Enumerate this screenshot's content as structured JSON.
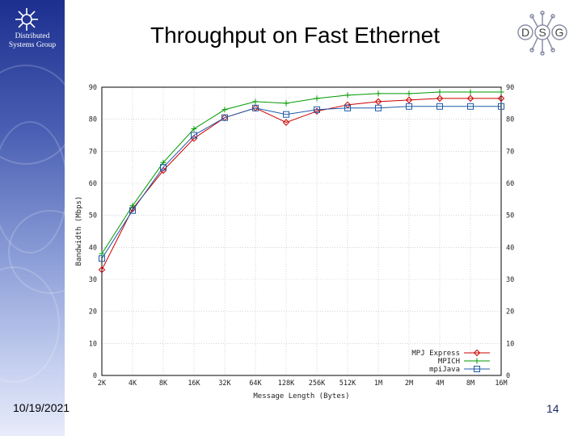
{
  "slide": {
    "title": "Throughput on Fast Ethernet",
    "group_name": "Distributed Systems Group",
    "logo_letters": [
      "D",
      "S",
      "G"
    ],
    "date": "10/19/2021",
    "slide_number": "14"
  },
  "colors": {
    "sidebar": "#2b3d9e",
    "mpj_express": "#cc0000",
    "mpich": "#009900",
    "mpijava": "#1e5aa8"
  },
  "chart_data": {
    "type": "line",
    "title": "",
    "xlabel": "Message Length (Bytes)",
    "ylabel": "Bandwidth (Mbps)",
    "x_scale": "log2",
    "categories": [
      "2K",
      "4K",
      "8K",
      "16K",
      "32K",
      "64K",
      "128K",
      "256K",
      "512K",
      "1M",
      "2M",
      "4M",
      "8M",
      "16M"
    ],
    "ylim": [
      0,
      90
    ],
    "yticks": [
      0,
      10,
      20,
      30,
      40,
      50,
      60,
      70,
      80,
      90
    ],
    "legend_position": "bottom-right",
    "grid": true,
    "series": [
      {
        "name": "MPJ Express",
        "marker": "diamond",
        "color": "#cc0000",
        "values": [
          33,
          52,
          64,
          74,
          80.5,
          83.5,
          79,
          82.5,
          84.5,
          85.5,
          86,
          86.5,
          86.5,
          86.5
        ]
      },
      {
        "name": "MPICH",
        "marker": "plus",
        "color": "#009900",
        "values": [
          38,
          53,
          66.5,
          77,
          83,
          85.5,
          85,
          86.5,
          87.5,
          88,
          88,
          88.5,
          88.5,
          88.5
        ]
      },
      {
        "name": "mpiJava",
        "marker": "square",
        "color": "#1e5aa8",
        "values": [
          36.5,
          51.5,
          65,
          75,
          80.5,
          83.5,
          81.5,
          83,
          83.5,
          83.5,
          84,
          84,
          84,
          84
        ]
      }
    ]
  }
}
